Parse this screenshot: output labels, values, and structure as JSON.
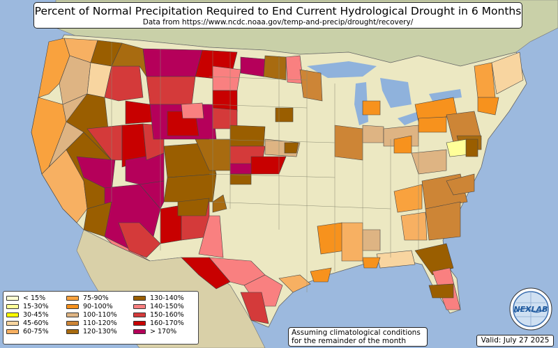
{
  "title": "Percent of Normal Precipitation Required to End Current Hydrological Drought in 6 Months",
  "subtitle": "Data from https://www.ncdc.noaa.gov/temp-and-precip/drought/recovery/",
  "note_line1": "Assuming climatological conditions",
  "note_line2": "for the remainder of the month",
  "valid": "Valid: July 27 2025",
  "logo_text": "NEXLAB",
  "colors": {
    "ocean": "#9cb9de",
    "land_neutral": "#ece8c2",
    "land_canada": "#c9d0a8",
    "land_mexico": "#d9d0a8",
    "lake": "#8fb2dc"
  },
  "legend": [
    {
      "label": "< 15%",
      "color": "#ffffd4"
    },
    {
      "label": "15-30%",
      "color": "#ffff99"
    },
    {
      "label": "30-45%",
      "color": "#ffff00"
    },
    {
      "label": "45-60%",
      "color": "#f8d5a0"
    },
    {
      "label": "60-75%",
      "color": "#f7b062"
    },
    {
      "label": "75-90%",
      "color": "#f9a23e"
    },
    {
      "label": "90-100%",
      "color": "#f7921d"
    },
    {
      "label": "100-110%",
      "color": "#deb483"
    },
    {
      "label": "110-120%",
      "color": "#cd8536"
    },
    {
      "label": "120-130%",
      "color": "#a86b10"
    },
    {
      "label": "130-140%",
      "color": "#9a5e00"
    },
    {
      "label": "140-150%",
      "color": "#f98080"
    },
    {
      "label": "150-160%",
      "color": "#d43a3a"
    },
    {
      "label": "160-170%",
      "color": "#c80000"
    },
    {
      "label": "> 170%",
      "color": "#b5005a"
    }
  ]
}
